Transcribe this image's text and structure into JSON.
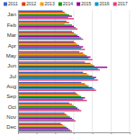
{
  "chart_data": {
    "type": "bar",
    "orientation": "horizontal",
    "categories": [
      "Jan",
      "Feb",
      "Mar",
      "Apr",
      "May",
      "Jun",
      "Jul",
      "Aug",
      "Sep",
      "Oct",
      "Nov",
      "Dec"
    ],
    "series": [
      {
        "name": "2011",
        "color": "#3366cc",
        "values": [
          48,
          52,
          58,
          60,
          66,
          72,
          70,
          68,
          62,
          55,
          50,
          46
        ]
      },
      {
        "name": "2012",
        "color": "#dc3912",
        "values": [
          50,
          55,
          60,
          62,
          70,
          78,
          74,
          72,
          64,
          58,
          52,
          48
        ]
      },
      {
        "name": "2013",
        "color": "#ff9900",
        "values": [
          52,
          50,
          62,
          64,
          72,
          80,
          76,
          74,
          66,
          60,
          54,
          50
        ]
      },
      {
        "name": "2014",
        "color": "#109618",
        "values": [
          55,
          58,
          64,
          66,
          74,
          82,
          80,
          76,
          68,
          62,
          56,
          52
        ]
      },
      {
        "name": "2015",
        "color": "#990099",
        "values": [
          58,
          60,
          66,
          70,
          78,
          96,
          84,
          80,
          72,
          64,
          58,
          54
        ]
      },
      {
        "name": "2016",
        "color": "#0099c6",
        "values": [
          54,
          62,
          68,
          68,
          76,
          86,
          82,
          82,
          70,
          66,
          60,
          56
        ]
      },
      {
        "name": "2017",
        "color": "#dd4477",
        "values": [
          60,
          64,
          70,
          72,
          80,
          88,
          86,
          84,
          74,
          68,
          62,
          58
        ]
      }
    ],
    "xlim": [
      0,
      120
    ],
    "xticks": [
      0,
      20,
      40,
      60,
      80,
      100,
      120
    ],
    "grid": true,
    "legend": "top",
    "tick_labels": "y"
  }
}
